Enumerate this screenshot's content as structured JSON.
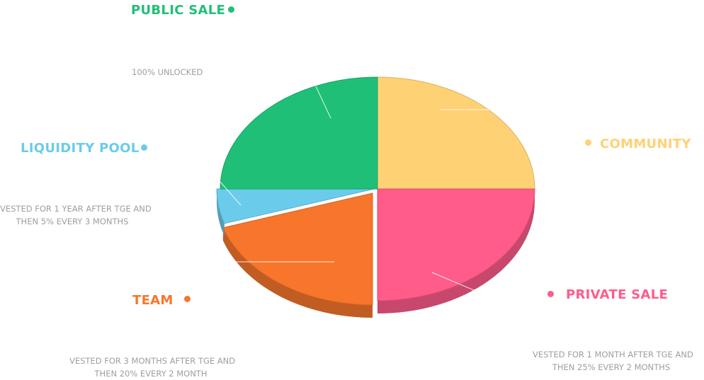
{
  "chart_data": {
    "type": "pie",
    "style": "3d-exploded",
    "slices": [
      {
        "name": "COMMUNITY",
        "value": 25,
        "color": "#FFD175",
        "note": []
      },
      {
        "name": "PRIVATE SALE",
        "value": 25,
        "color": "#FF5C8A",
        "note": [
          "VESTED FOR 1 MONTH AFTER TGE AND",
          "THEN 25% EVERY 2 MONTHS"
        ]
      },
      {
        "name": "TEAM",
        "value": 20,
        "color": "#F7762C",
        "note": [
          "VESTED FOR 3 MONTHS AFTER TGE AND",
          "THEN 20% EVERY 2 MONTH"
        ]
      },
      {
        "name": "LIQUIDITY POOL",
        "value": 5,
        "color": "#6BCBEB",
        "note": [
          "VESTED FOR 1 YEAR AFTER TGE AND",
          "THEN 5% EVERY 3 MONTHS"
        ]
      },
      {
        "name": "PUBLIC SALE",
        "value": 25,
        "color": "#20BF78",
        "note": [
          "100% UNLOCKED"
        ]
      }
    ]
  }
}
